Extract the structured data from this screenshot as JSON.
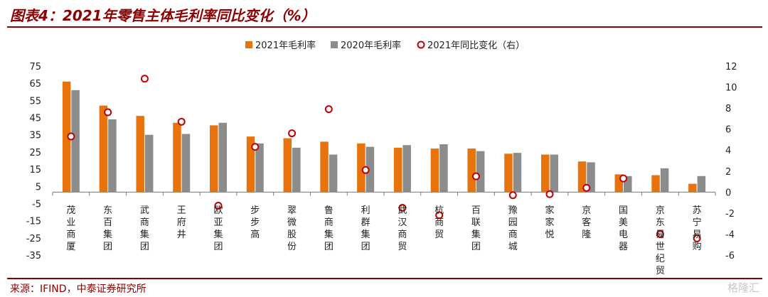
{
  "header": {
    "title": "图表4：2021年零售主体毛利率同比变化（%）"
  },
  "footer": {
    "source": "来源：IFIND，中泰证券研究所",
    "watermark": "格隆汇"
  },
  "colors": {
    "series2021": "#e8730c",
    "series2020": "#8c8c8c",
    "change_marker": "#c00000",
    "title": "#8b0000"
  },
  "chart_data": {
    "type": "bar",
    "categories": [
      "茂业商厦",
      "东百集团",
      "武商集团",
      "王府井",
      "欧亚集团",
      "步步高",
      "翠微股份",
      "鲁商集团",
      "利群集团",
      "武汉商贸",
      "杭商贸",
      "百联集团",
      "豫园商城",
      "家家悦",
      "京客隆",
      "国美电器",
      "京东易世纪贸",
      "苏宁易购"
    ],
    "series": [
      {
        "name": "2021年毛利率",
        "kind": "bar",
        "axis": "left",
        "values": [
          66,
          52,
          46,
          42,
          40.5,
          34,
          33,
          31,
          30,
          27.5,
          27,
          27,
          24,
          23.5,
          19.5,
          12,
          11.5,
          6.5
        ]
      },
      {
        "name": "2020年毛利率",
        "kind": "bar",
        "axis": "left",
        "values": [
          61,
          44,
          35,
          35.5,
          42,
          30,
          27.5,
          23.5,
          28,
          29,
          29.5,
          25.5,
          24.5,
          23.5,
          19,
          11,
          15.5,
          11
        ]
      },
      {
        "name": "2021年同比变化（右）",
        "kind": "marker",
        "axis": "right",
        "values": [
          5.3,
          7.6,
          10.8,
          6.7,
          -1.3,
          4.3,
          5.6,
          7.9,
          2.1,
          -1.5,
          -2.2,
          1.5,
          -0.3,
          -0.2,
          0.4,
          1.3,
          -4.0,
          -4.4
        ]
      }
    ],
    "left_axis": {
      "ylim": [
        -35,
        75
      ],
      "ticks": [
        "75",
        "65",
        "55",
        "45",
        "35",
        "25",
        "15",
        "5",
        "-5",
        "-15",
        "-25",
        "-35"
      ]
    },
    "right_axis": {
      "ylim": [
        -6,
        12
      ],
      "ticks": [
        "12",
        "10",
        "8",
        "6",
        "4",
        "2",
        "0",
        "-2",
        "-4",
        "-6"
      ]
    },
    "legend_placement": "top-center",
    "grid": false
  }
}
